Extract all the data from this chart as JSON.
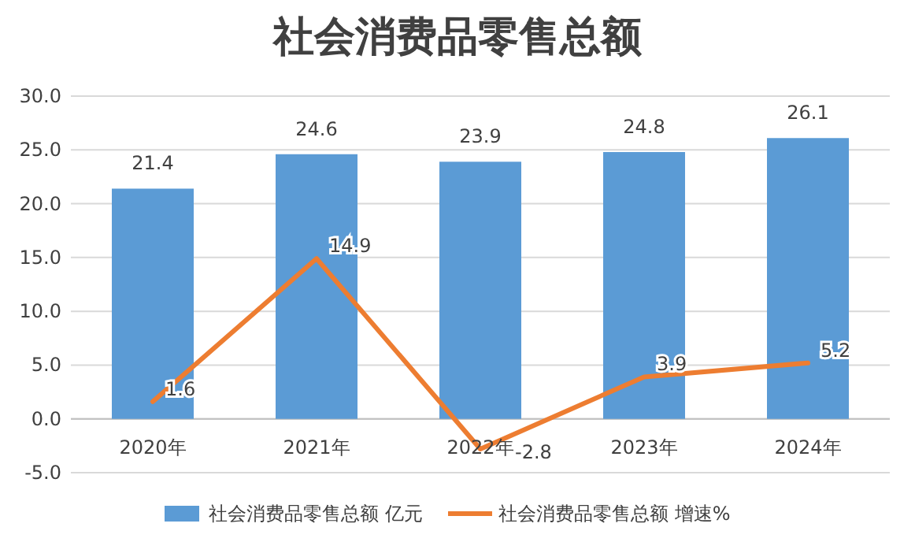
{
  "chart_data": {
    "type": "bar",
    "title": "社会消费品零售总额",
    "categories": [
      "2020年",
      "2021年",
      "2022年",
      "2023年",
      "2024年"
    ],
    "series": [
      {
        "name": "社会消费品零售总额 亿元",
        "color": "#5b9bd5",
        "values": [
          21.4,
          24.6,
          23.9,
          24.8,
          26.1
        ]
      },
      {
        "name": "社会消费品零售总额 增速%",
        "type": "line",
        "color": "#ed7d31",
        "values": [
          1.6,
          14.9,
          -2.8,
          3.9,
          5.2
        ]
      }
    ],
    "ylim": [
      -5,
      30
    ],
    "yticks": [
      {
        "value": -5,
        "label": "-5.0"
      },
      {
        "value": 0,
        "label": "0.0"
      },
      {
        "value": 5,
        "label": "5.0"
      },
      {
        "value": 10,
        "label": "10.0"
      },
      {
        "value": 15,
        "label": "15.0"
      },
      {
        "value": 20,
        "label": "20.0"
      },
      {
        "value": 25,
        "label": "25.0"
      },
      {
        "value": 30,
        "label": "30.0"
      }
    ],
    "grid": true,
    "legend": "bottom",
    "data_labels": true,
    "marker": "none"
  }
}
